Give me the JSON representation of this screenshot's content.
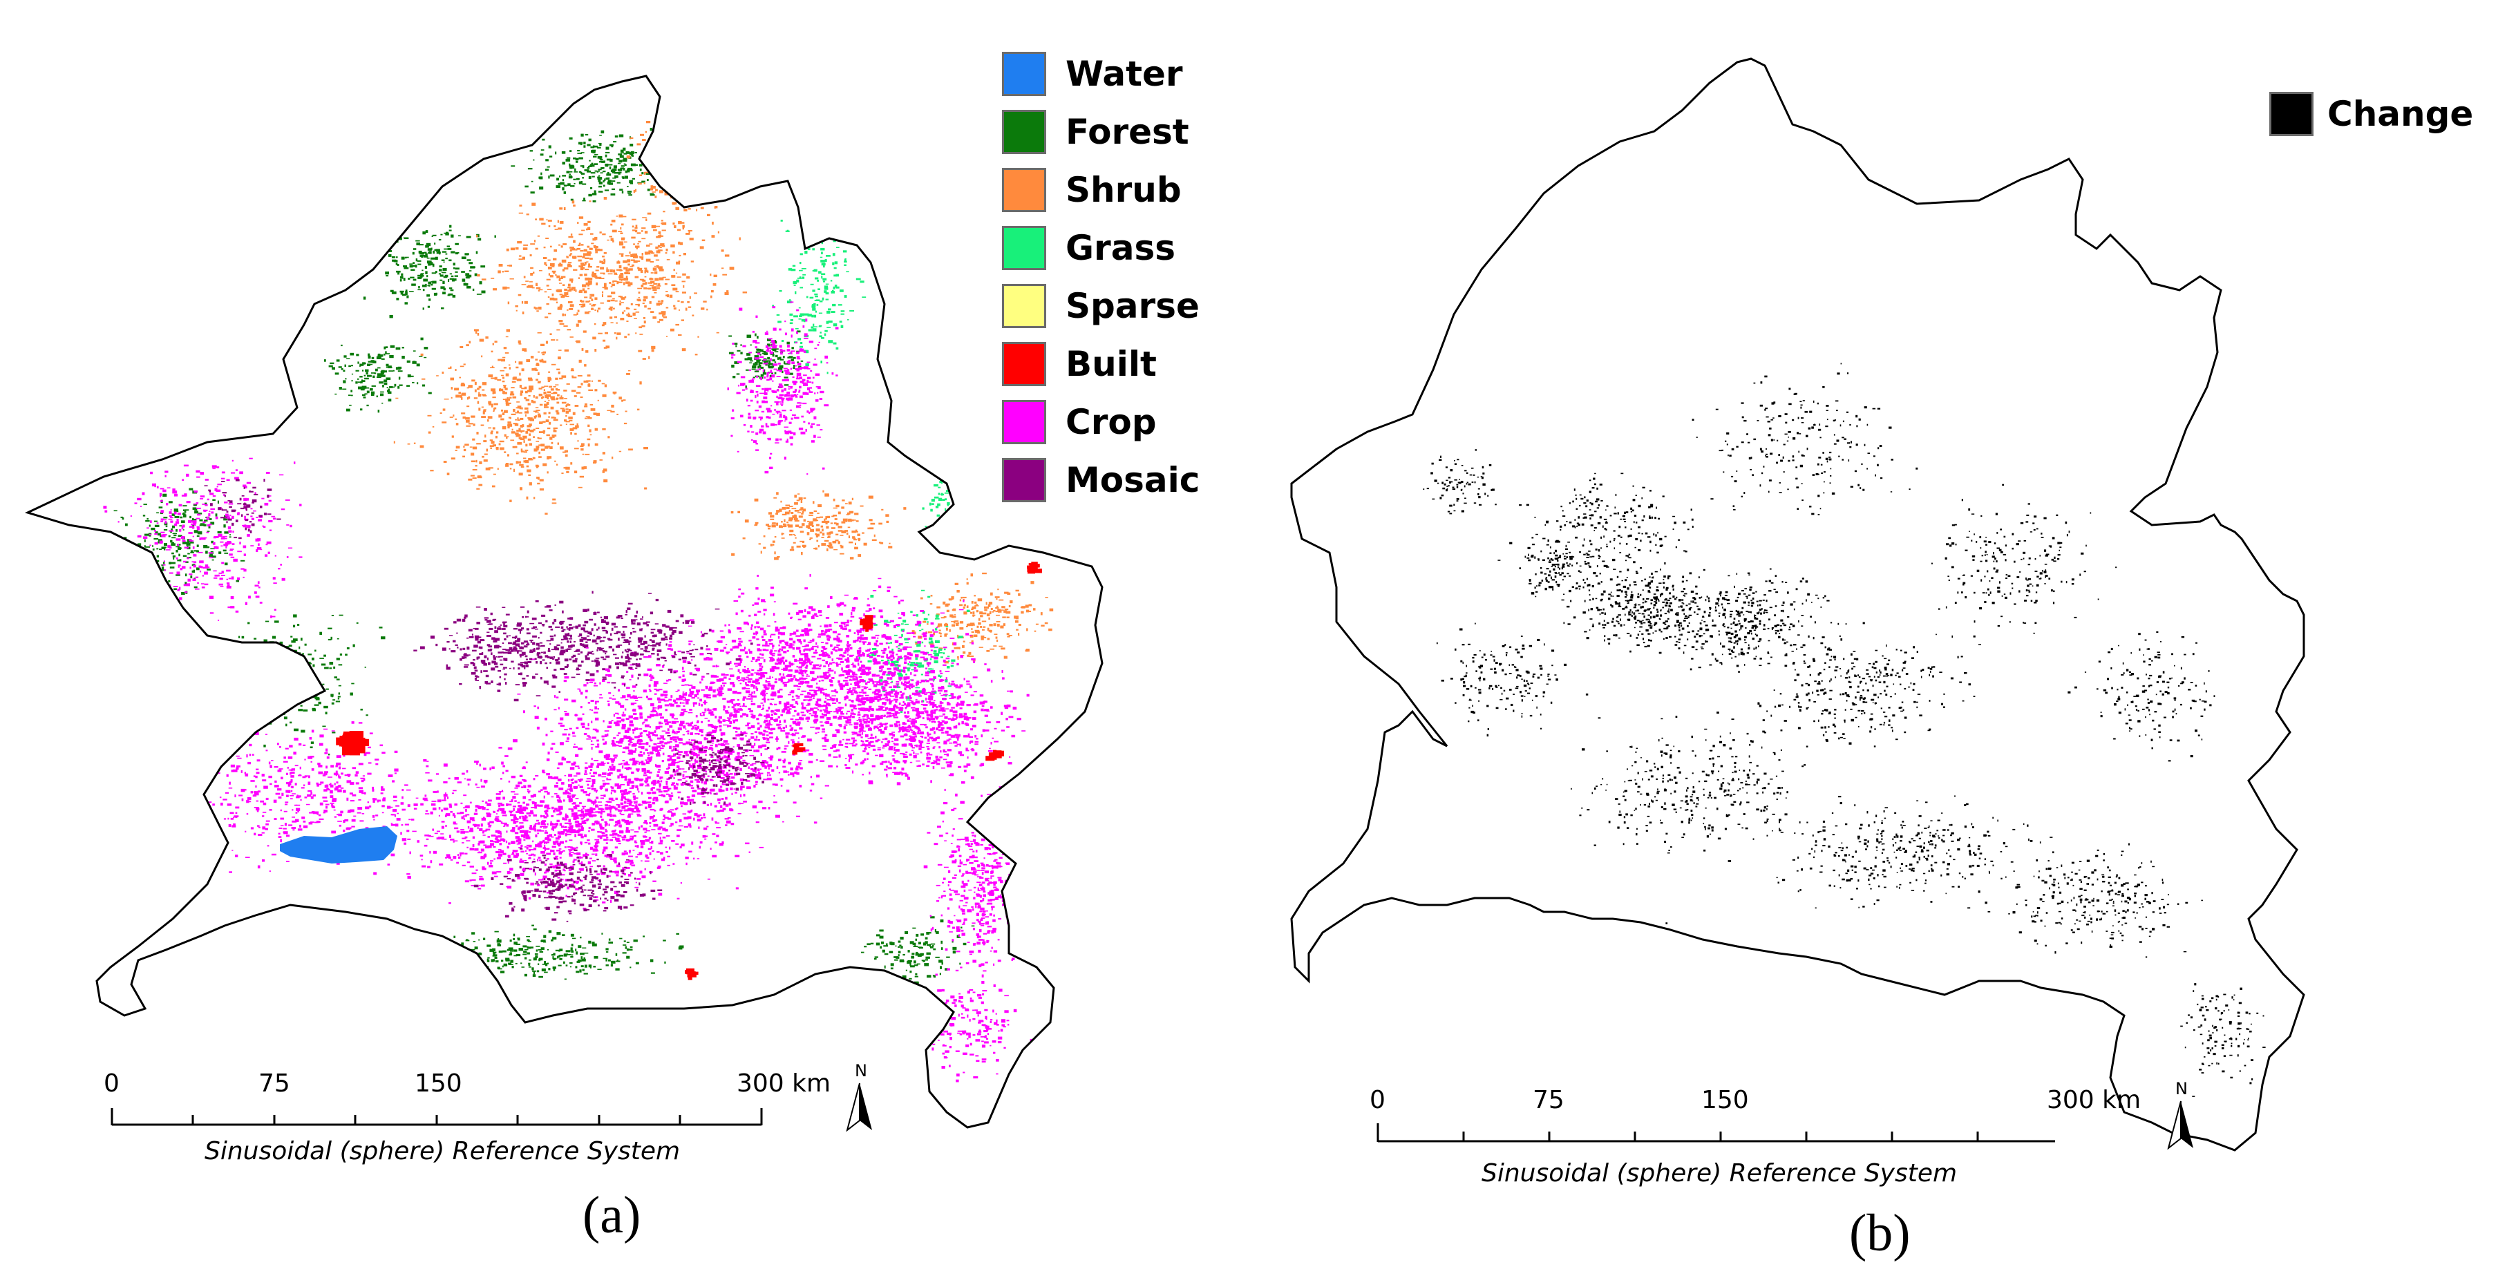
{
  "panel_a": {
    "legend": [
      {
        "label": "Water",
        "color": "#1f7ef0"
      },
      {
        "label": "Forest",
        "color": "#0b7a0b"
      },
      {
        "label": "Shrub",
        "color": "#ff8a3d"
      },
      {
        "label": "Grass",
        "color": "#18f07a"
      },
      {
        "label": "Sparse",
        "color": "#ffff80"
      },
      {
        "label": "Built",
        "color": "#ff0000"
      },
      {
        "label": "Crop",
        "color": "#ff00ff"
      },
      {
        "label": "Mosaic",
        "color": "#8b0080"
      }
    ],
    "scalebar": {
      "ticks": [
        "0",
        "75",
        "150",
        "300 km"
      ],
      "reference": "Sinusoidal (sphere) Reference System"
    },
    "north_label": "N",
    "caption": "(a)"
  },
  "panel_b": {
    "legend": [
      {
        "label": "Change",
        "color": "#000000"
      }
    ],
    "scalebar": {
      "ticks": [
        "0",
        "75",
        "150",
        "300 km"
      ],
      "reference": "Sinusoidal (sphere) Reference System"
    },
    "north_label": "N",
    "caption": "(b)"
  }
}
